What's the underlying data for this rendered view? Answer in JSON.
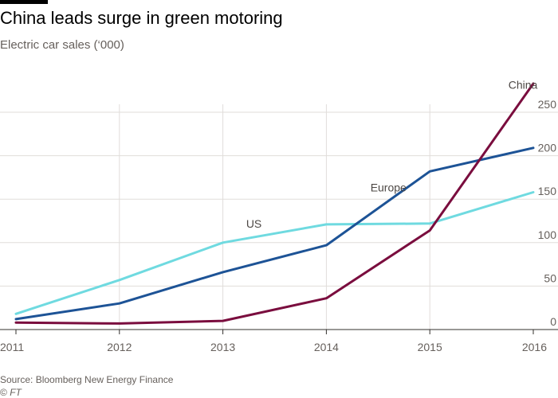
{
  "title": "China leads surge in green motoring",
  "subtitle": "Electric car sales (‘000)",
  "source": "Source: Bloomberg New Energy Finance",
  "credit_symbol": "©",
  "credit_brand": "FT",
  "colors": {
    "background": "#ffffff",
    "grid": "#e0ddda",
    "axis": "#33302e",
    "tick_text": "#66605c",
    "label_text": "#4d4845"
  },
  "chart_data": {
    "type": "line",
    "x": [
      2011,
      2012,
      2013,
      2014,
      2015,
      2016
    ],
    "ylim": [
      0,
      250
    ],
    "yticks": [
      0,
      50,
      100,
      150,
      200,
      250
    ],
    "xticks": [
      "2011",
      "2012",
      "2013",
      "2014",
      "2015",
      "2016"
    ],
    "grid": true,
    "y_axis_side": "right",
    "series": [
      {
        "name": "US",
        "color": "#6fdae0",
        "values": [
          18,
          57,
          100,
          121,
          122,
          158
        ],
        "label_at": 2013.3
      },
      {
        "name": "Europe",
        "color": "#1d5396",
        "values": [
          12,
          30,
          66,
          97,
          182,
          209
        ],
        "label_at": 2014.6
      },
      {
        "name": "China",
        "color": "#7a0d3e",
        "values": [
          8,
          7,
          10,
          36,
          114,
          283
        ],
        "label_at": 2015.9
      }
    ]
  }
}
